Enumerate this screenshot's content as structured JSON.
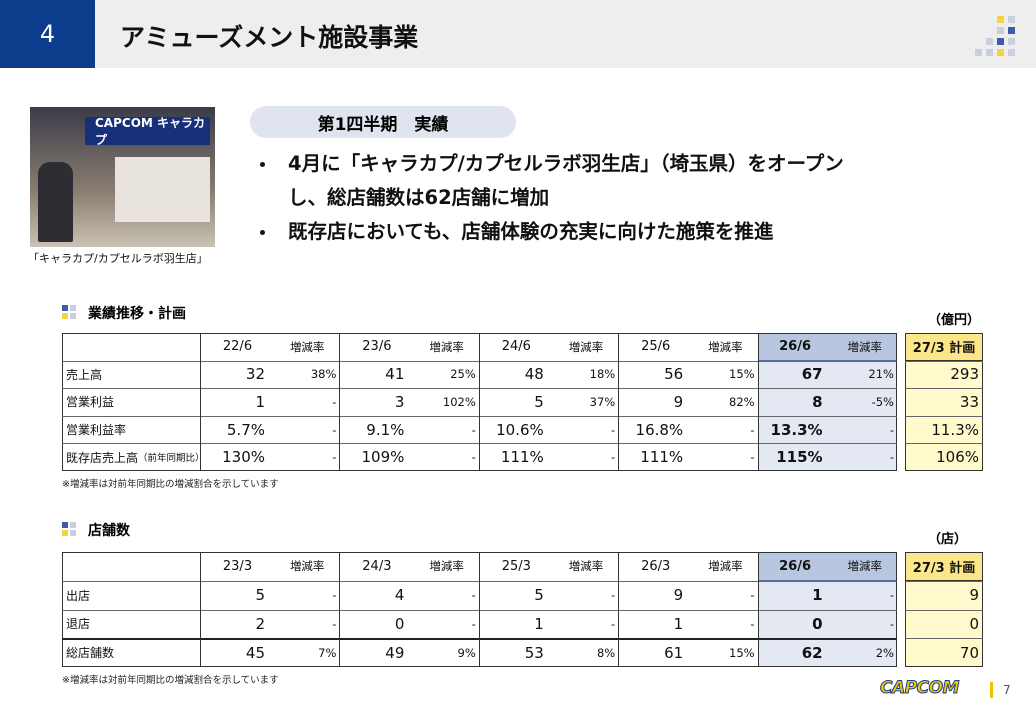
{
  "header": {
    "number": "4",
    "title": "アミューズメント施設事業"
  },
  "photo": {
    "sign": "CAPCOM キャラカプ",
    "caption": "「キャラカプ/カプセルラボ羽生店」"
  },
  "highlight": {
    "heading": "第1四半期　実績",
    "bullets": [
      "4月に「キャラカプ/カプセルラボ羽生店」（埼玉県）をオープンし、総店舗数は62店舗に増加",
      "既存店においても、店舗体験の充実に向けた施策を推進"
    ]
  },
  "table1": {
    "title": "業績推移・計画",
    "unit": "（億円）",
    "columns": [
      "22/6",
      "増減率",
      "23/6",
      "増減率",
      "24/6",
      "増減率",
      "25/6",
      "増減率",
      "26/6",
      "増減率",
      "27/3 計画"
    ],
    "rows": [
      {
        "label": "売上高",
        "cells": [
          "32",
          "38%",
          "41",
          "25%",
          "48",
          "18%",
          "56",
          "15%",
          "67",
          "21%",
          "293"
        ]
      },
      {
        "label": "営業利益",
        "cells": [
          "1",
          "-",
          "3",
          "102%",
          "5",
          "37%",
          "9",
          "82%",
          "8",
          "-5%",
          "33"
        ]
      },
      {
        "label": "営業利益率",
        "cells": [
          "5.7%",
          "-",
          "9.1%",
          "-",
          "10.6%",
          "-",
          "16.8%",
          "-",
          "13.3%",
          "-",
          "11.3%"
        ]
      },
      {
        "label": "既存店売上高",
        "label_note": "（前年同期比）",
        "cells": [
          "130%",
          "-",
          "109%",
          "-",
          "111%",
          "-",
          "111%",
          "-",
          "115%",
          "-",
          "106%"
        ]
      }
    ],
    "note": "※増減率は対前年同期比の増減割合を示しています"
  },
  "table2": {
    "title": "店舗数",
    "unit": "（店）",
    "columns": [
      "23/3",
      "増減率",
      "24/3",
      "増減率",
      "25/3",
      "増減率",
      "26/3",
      "増減率",
      "26/6",
      "増減率",
      "27/3 計画"
    ],
    "rows": [
      {
        "label": "出店",
        "cells": [
          "5",
          "-",
          "4",
          "-",
          "5",
          "-",
          "9",
          "-",
          "1",
          "-",
          "9"
        ]
      },
      {
        "label": "退店",
        "cells": [
          "2",
          "-",
          "0",
          "-",
          "1",
          "-",
          "1",
          "-",
          "0",
          "-",
          "0"
        ]
      },
      {
        "label": "総店舗数",
        "cells": [
          "45",
          "7%",
          "49",
          "9%",
          "53",
          "8%",
          "61",
          "15%",
          "62",
          "2%",
          "70"
        ]
      }
    ],
    "note": "※増減率は対前年同期比の増減割合を示しています"
  },
  "footer": {
    "logo": "CAPCOM",
    "page": "7"
  }
}
